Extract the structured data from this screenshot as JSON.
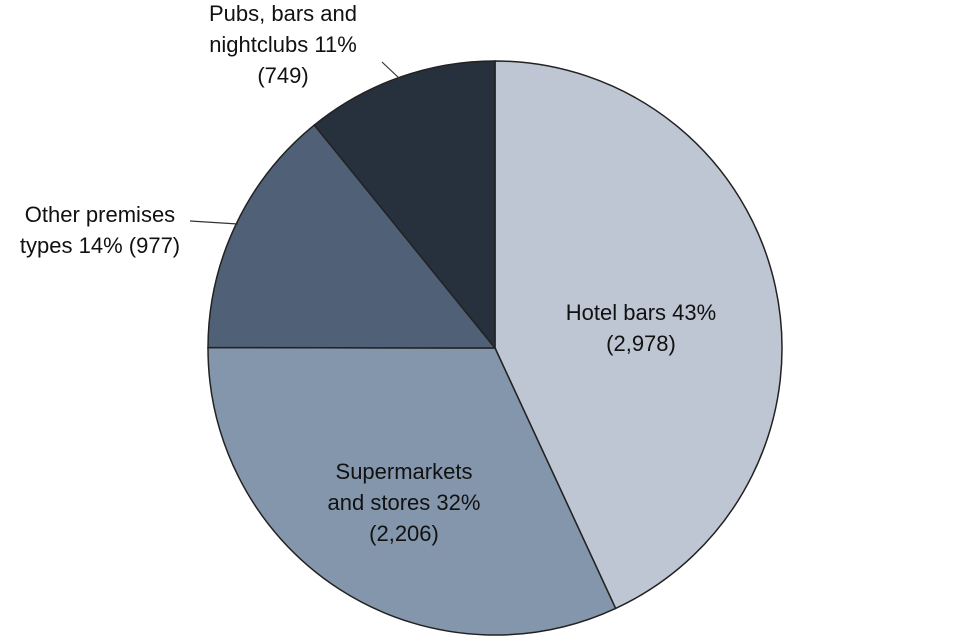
{
  "chart_data": {
    "type": "pie",
    "categories": [
      "Hotel bars",
      "Supermarkets and stores",
      "Other premises types",
      "Pubs, bars and nightclubs"
    ],
    "values": [
      2978,
      2206,
      977,
      749
    ],
    "value_labels": [
      "(2,978)",
      "(2,206)",
      "(977)",
      "(749)"
    ],
    "percentages": [
      43,
      32,
      14,
      11
    ],
    "percentage_labels": [
      "43%",
      "32%",
      "14%",
      "11%"
    ],
    "colors": [
      "#bdc6d2",
      "#8496ab",
      "#506077",
      "#27313d"
    ]
  }
}
